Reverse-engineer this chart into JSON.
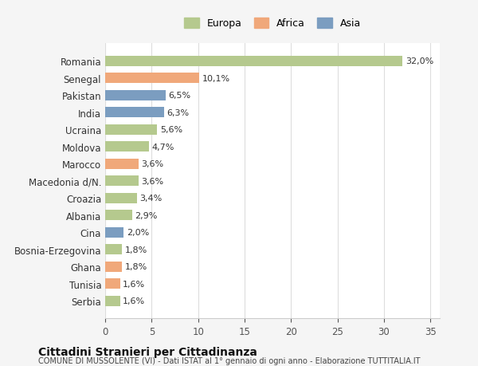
{
  "countries": [
    "Romania",
    "Senegal",
    "Pakistan",
    "India",
    "Ucraina",
    "Moldova",
    "Marocco",
    "Macedonia d/N.",
    "Croazia",
    "Albania",
    "Cina",
    "Bosnia-Erzegovina",
    "Ghana",
    "Tunisia",
    "Serbia"
  ],
  "values": [
    32.0,
    10.1,
    6.5,
    6.3,
    5.6,
    4.7,
    3.6,
    3.6,
    3.4,
    2.9,
    2.0,
    1.8,
    1.8,
    1.6,
    1.6
  ],
  "labels": [
    "32,0%",
    "10,1%",
    "6,5%",
    "6,3%",
    "5,6%",
    "4,7%",
    "3,6%",
    "3,6%",
    "3,4%",
    "2,9%",
    "2,0%",
    "1,8%",
    "1,8%",
    "1,6%",
    "1,6%"
  ],
  "continents": [
    "Europa",
    "Africa",
    "Asia",
    "Asia",
    "Europa",
    "Europa",
    "Africa",
    "Europa",
    "Europa",
    "Europa",
    "Asia",
    "Europa",
    "Africa",
    "Africa",
    "Europa"
  ],
  "colors": {
    "Europa": "#b5c98e",
    "Africa": "#f0a87a",
    "Asia": "#7b9dc0"
  },
  "legend_order": [
    "Europa",
    "Africa",
    "Asia"
  ],
  "title": "Cittadini Stranieri per Cittadinanza",
  "subtitle": "COMUNE DI MUSSOLENTE (VI) - Dati ISTAT al 1° gennaio di ogni anno - Elaborazione TUTTITALIA.IT",
  "xlim": [
    0,
    36
  ],
  "xticks": [
    0,
    5,
    10,
    15,
    20,
    25,
    30,
    35
  ],
  "background_color": "#f5f5f5",
  "plot_background": "#ffffff",
  "grid_color": "#dddddd"
}
